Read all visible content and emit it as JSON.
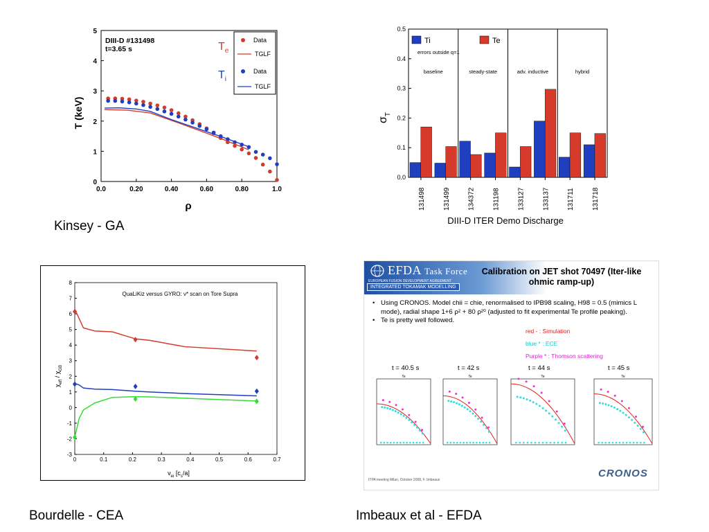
{
  "captions": {
    "kinsey": "Kinsey - GA",
    "bourdelle": "Bourdelle - CEA",
    "imbeaux": "Imbeaux et al - EFDA"
  },
  "colors": {
    "red": "#d63a2a",
    "blue": "#1f3fbf",
    "green": "#33dd33",
    "cyan": "#33dddd",
    "magenta": "#ee33cc"
  },
  "chart_data": [
    {
      "type": "scatter",
      "id": "kinsey",
      "annotation_line1": "DIII-D #131498",
      "annotation_line2": "t=3.65 s",
      "xlabel": "ρ",
      "ylabel": "T (keV)",
      "xlim": [
        0,
        1.0
      ],
      "ylim": [
        0,
        5
      ],
      "xticks": [
        "0.0",
        "0.20",
        "0.40",
        "0.60",
        "0.80",
        "1.0"
      ],
      "yticks": [
        "0",
        "1",
        "2",
        "3",
        "4",
        "5"
      ],
      "legend": {
        "te_label": "T",
        "te_sub": "e",
        "ti_label": "T",
        "ti_sub": "i",
        "data": "Data",
        "tglf": "TGLF"
      },
      "series": [
        {
          "name": "Te Data",
          "kind": "points",
          "color": "red",
          "x": [
            0.04,
            0.08,
            0.12,
            0.16,
            0.2,
            0.24,
            0.28,
            0.32,
            0.36,
            0.4,
            0.44,
            0.48,
            0.52,
            0.56,
            0.6,
            0.64,
            0.68,
            0.72,
            0.76,
            0.8,
            0.84,
            0.88,
            0.92,
            0.96,
            1.0
          ],
          "y": [
            2.75,
            2.75,
            2.74,
            2.72,
            2.68,
            2.64,
            2.58,
            2.52,
            2.45,
            2.36,
            2.26,
            2.15,
            2.03,
            1.9,
            1.76,
            1.6,
            1.44,
            1.3,
            1.18,
            1.06,
            0.93,
            0.78,
            0.56,
            0.33,
            0.05
          ]
        },
        {
          "name": "Ti Data",
          "kind": "points",
          "color": "blue",
          "x": [
            0.04,
            0.08,
            0.12,
            0.16,
            0.2,
            0.24,
            0.28,
            0.32,
            0.36,
            0.4,
            0.44,
            0.48,
            0.52,
            0.56,
            0.6,
            0.64,
            0.68,
            0.72,
            0.76,
            0.8,
            0.84,
            0.88,
            0.92,
            0.96,
            1.0
          ],
          "y": [
            2.67,
            2.67,
            2.65,
            2.62,
            2.58,
            2.53,
            2.47,
            2.4,
            2.32,
            2.24,
            2.15,
            2.05,
            1.95,
            1.84,
            1.73,
            1.62,
            1.5,
            1.4,
            1.3,
            1.22,
            1.14,
            0.98,
            0.89,
            0.77,
            0.57
          ]
        },
        {
          "name": "Te TGLF",
          "kind": "line",
          "color": "red",
          "x": [
            0.02,
            0.15,
            0.28,
            0.45,
            0.6,
            0.7,
            0.84
          ],
          "y": [
            2.38,
            2.36,
            2.27,
            1.92,
            1.6,
            1.38,
            1.05
          ]
        },
        {
          "name": "Ti TGLF",
          "kind": "line",
          "color": "blue",
          "x": [
            0.02,
            0.1,
            0.2,
            0.28,
            0.4,
            0.55,
            0.7,
            0.84
          ],
          "y": [
            2.43,
            2.44,
            2.4,
            2.32,
            2.05,
            1.75,
            1.45,
            1.15
          ]
        }
      ]
    },
    {
      "type": "bar",
      "id": "sigma",
      "xlabel": "DIII-D ITER Demo Discharge",
      "ylabel": "σ",
      "ylabel_sub": "T",
      "ylim": [
        0,
        0.5
      ],
      "yticks": [
        "0.0",
        "0.1",
        "0.2",
        "0.3",
        "0.4",
        "0.5"
      ],
      "legend": {
        "ti": "Ti",
        "te": "Te"
      },
      "note": "errors outside q=1",
      "groups": [
        "baseline",
        "steady-state",
        "adv. inductive",
        "hybrid"
      ],
      "categories": [
        "131498",
        "131499",
        "134372",
        "131198",
        "133127",
        "133137",
        "131711",
        "131718"
      ],
      "series": [
        {
          "name": "Ti",
          "color": "blue",
          "values": [
            0.05,
            0.048,
            0.122,
            0.082,
            0.035,
            0.19,
            0.068,
            0.11
          ]
        },
        {
          "name": "Te",
          "color": "red",
          "values": [
            0.17,
            0.104,
            0.077,
            0.15,
            0.104,
            0.297,
            0.15,
            0.148
          ]
        }
      ]
    },
    {
      "type": "line",
      "id": "qualikiz",
      "title": "QuaLiKiz versus GYRO: ν* scan on Tore Supra",
      "xlabel": "ν",
      "xlabel_sub": "ei",
      "xlabel_rest": " [c",
      "xlabel_sub2": "s",
      "xlabel_end": "/a]",
      "ylabel": "χ",
      "ylabel_sub": "eff",
      "ylabel_mid": " / χ",
      "ylabel_sub2": "GB",
      "xlim": [
        0,
        0.7
      ],
      "ylim": [
        -3,
        8
      ],
      "xticks": [
        "0",
        "0.1",
        "0.2",
        "0.3",
        "0.4",
        "0.5",
        "0.6",
        "0.7"
      ],
      "yticks": [
        "-3",
        "-2",
        "-1",
        "0",
        "1",
        "2",
        "3",
        "4",
        "5",
        "6",
        "7",
        "8"
      ],
      "series": [
        {
          "name": "red line",
          "kind": "line",
          "color": "red",
          "x": [
            0,
            0.015,
            0.03,
            0.07,
            0.13,
            0.21,
            0.26,
            0.38,
            0.63
          ],
          "y": [
            6.3,
            5.7,
            5.1,
            4.9,
            4.85,
            4.4,
            4.3,
            3.9,
            3.62
          ]
        },
        {
          "name": "blue line",
          "kind": "line",
          "color": "blue",
          "x": [
            0,
            0.015,
            0.03,
            0.07,
            0.13,
            0.21,
            0.26,
            0.38,
            0.63
          ],
          "y": [
            1.55,
            1.45,
            1.25,
            1.18,
            1.15,
            1.05,
            1.0,
            0.9,
            0.75
          ]
        },
        {
          "name": "green line",
          "kind": "line",
          "color": "green",
          "x": [
            0,
            0.015,
            0.03,
            0.07,
            0.13,
            0.21,
            0.26,
            0.38,
            0.63
          ],
          "y": [
            -1.9,
            -0.7,
            -0.15,
            0.3,
            0.65,
            0.7,
            0.68,
            0.6,
            0.42
          ]
        },
        {
          "name": "red gyro",
          "kind": "points",
          "color": "red",
          "x": [
            0,
            0.21,
            0.63
          ],
          "y": [
            6.15,
            4.35,
            3.2
          ]
        },
        {
          "name": "blue gyro",
          "kind": "points",
          "color": "blue",
          "x": [
            0,
            0.21,
            0.63
          ],
          "y": [
            1.5,
            1.35,
            1.05
          ]
        },
        {
          "name": "green gyro",
          "kind": "points",
          "color": "green",
          "x": [
            0,
            0.21,
            0.63
          ],
          "y": [
            -1.9,
            0.55,
            0.4
          ]
        }
      ]
    }
  ],
  "slide": {
    "logo": "EFDA",
    "logo_suffix": "Task Force",
    "sub1": "EUROPEAN FUSION DEVELOPMENT AGREEMENT",
    "sub2": "INTEGRATED TOKAMAK MODELLING",
    "title": "Calibration on JET shot 70497 (Iter-like ohmic ramp-up)",
    "bullet1": "Using CRONOS. Model chii = chie, renormalised to IPB98 scaling, H98 = 0.5 (mimics L mode), radial shape 1+6 ρ² + 80 ρ²⁰ (adjusted to fit experimental Te profile peaking).",
    "bullet2": "Te is pretty well followed.",
    "legend_red": "red - : Simulation",
    "legend_blue": "blue * : ECE",
    "legend_purple": "Purple * : Thomson scattering",
    "times": [
      "t = 40.5 s",
      "t = 42 s",
      "t = 44 s",
      "t = 45 s"
    ],
    "panel_title": "Te",
    "footer": "ITPA meeting Milan, October 2008, F. Imbeaux",
    "brand": "CRONOS"
  }
}
